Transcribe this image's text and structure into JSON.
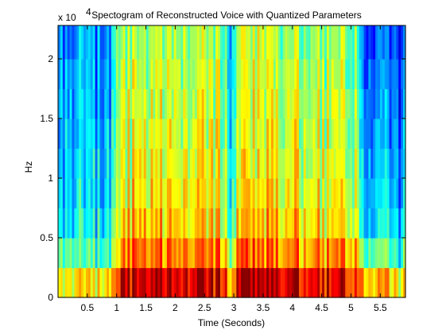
{
  "chart_data": {
    "type": "heatmap",
    "title": "Spectogram of Reconstructed Voice with Quantized Parameters",
    "xlabel": "Time (Seconds)",
    "ylabel": "Hz",
    "y_exponent_label": "x 10",
    "y_exponent_power": "4",
    "xlim": [
      0.0,
      5.93
    ],
    "ylim": [
      0,
      22800
    ],
    "x_ticks": [
      "0.5",
      "1",
      "1.5",
      "2",
      "2.5",
      "3",
      "3.5",
      "4",
      "4.5",
      "5",
      "5.5"
    ],
    "x_tick_values": [
      0.5,
      1,
      1.5,
      2,
      2.5,
      3,
      3.5,
      4,
      4.5,
      5,
      5.5
    ],
    "y_ticks": [
      "0",
      "0.5",
      "1",
      "1.5",
      "2"
    ],
    "y_tick_values": [
      0,
      5000,
      10000,
      15000,
      20000
    ],
    "colormap": "jet",
    "grid": false,
    "frequency_bands_hz": [
      [
        0,
        2500
      ],
      [
        2500,
        5000
      ],
      [
        5000,
        7500
      ],
      [
        7500,
        10000
      ],
      [
        10000,
        12500
      ],
      [
        12500,
        15000
      ],
      [
        15000,
        17500
      ],
      [
        17500,
        20000
      ],
      [
        20000,
        22800
      ]
    ],
    "segments": [
      {
        "t_start": 0.0,
        "t_end": 0.05,
        "levels": [
          0.62,
          0.42,
          0.3,
          0.28,
          0.24,
          0.22,
          0.22,
          0.2,
          0.18
        ]
      },
      {
        "t_start": 0.05,
        "t_end": 0.3,
        "levels": [
          0.62,
          0.45,
          0.36,
          0.33,
          0.31,
          0.29,
          0.28,
          0.27,
          0.25
        ]
      },
      {
        "t_start": 0.3,
        "t_end": 0.62,
        "levels": [
          0.64,
          0.47,
          0.4,
          0.37,
          0.35,
          0.33,
          0.32,
          0.31,
          0.29
        ]
      },
      {
        "t_start": 0.62,
        "t_end": 0.9,
        "levels": [
          0.65,
          0.44,
          0.36,
          0.32,
          0.3,
          0.28,
          0.27,
          0.26,
          0.24
        ]
      },
      {
        "t_start": 0.9,
        "t_end": 1.05,
        "levels": [
          0.76,
          0.6,
          0.53,
          0.5,
          0.48,
          0.47,
          0.46,
          0.45,
          0.43
        ]
      },
      {
        "t_start": 1.05,
        "t_end": 1.6,
        "levels": [
          0.92,
          0.74,
          0.66,
          0.62,
          0.6,
          0.58,
          0.56,
          0.55,
          0.53
        ]
      },
      {
        "t_start": 1.6,
        "t_end": 2.05,
        "levels": [
          0.92,
          0.76,
          0.68,
          0.64,
          0.61,
          0.59,
          0.57,
          0.56,
          0.54
        ]
      },
      {
        "t_start": 2.05,
        "t_end": 2.9,
        "levels": [
          0.9,
          0.73,
          0.65,
          0.61,
          0.59,
          0.57,
          0.55,
          0.54,
          0.52
        ]
      },
      {
        "t_start": 2.9,
        "t_end": 3.05,
        "levels": [
          0.7,
          0.58,
          0.48,
          0.44,
          0.42,
          0.41,
          0.4,
          0.39,
          0.38
        ]
      },
      {
        "t_start": 3.05,
        "t_end": 4.2,
        "levels": [
          0.92,
          0.75,
          0.67,
          0.63,
          0.6,
          0.58,
          0.57,
          0.56,
          0.54
        ]
      },
      {
        "t_start": 4.2,
        "t_end": 5.15,
        "levels": [
          0.9,
          0.73,
          0.64,
          0.6,
          0.58,
          0.56,
          0.55,
          0.54,
          0.52
        ]
      },
      {
        "t_start": 5.15,
        "t_end": 5.93,
        "levels": [
          0.66,
          0.42,
          0.33,
          0.29,
          0.27,
          0.25,
          0.23,
          0.21,
          0.19
        ]
      }
    ]
  }
}
